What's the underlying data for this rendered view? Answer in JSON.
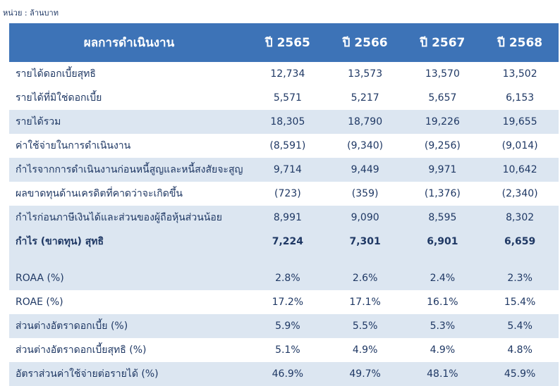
{
  "unit_label": "หน่วย : ล้านบาท",
  "header": {
    "label": "ผลการดำเนินงาน",
    "years": [
      "ปี 2565",
      "ปี 2566",
      "ปี 2567",
      "ปี 2568"
    ]
  },
  "rows": [
    {
      "label": "รายได้ดอกเบี้ยสุทธิ",
      "values": [
        "12,734",
        "13,573",
        "13,570",
        "13,502"
      ]
    },
    {
      "label": "รายได้ที่มิใช่ดอกเบี้ย",
      "values": [
        "5,571",
        "5,217",
        "5,657",
        "6,153"
      ]
    },
    {
      "label": "รายได้รวม",
      "values": [
        "18,305",
        "18,790",
        "19,226",
        "19,655"
      ]
    },
    {
      "label": "ค่าใช้จ่ายในการดำเนินงาน",
      "values": [
        "(8,591)",
        "(9,340)",
        "(9,256)",
        "(9,014)"
      ]
    },
    {
      "label": "กำไรจากการดำเนินงานก่อนหนี้สูญและหนี้สงสัยจะสูญ",
      "values": [
        "9,714",
        "9,449",
        "9,971",
        "10,642"
      ]
    },
    {
      "label": "ผลขาดทุนด้านเครดิตที่คาดว่าจะเกิดขึ้น",
      "values": [
        "(723)",
        "(359)",
        "(1,376)",
        "(2,340)"
      ]
    },
    {
      "label": "กำไรก่อนภาษีเงินได้และส่วนของผู้ถือหุ้นส่วนน้อย",
      "values": [
        "8,991",
        "9,090",
        "8,595",
        "8,302"
      ]
    },
    {
      "label": "กำไร (ขาดทุน) สุทธิ",
      "values": [
        "7,224",
        "7,301",
        "6,901",
        "6,659"
      ]
    },
    {
      "label": "ROAA (%)",
      "values": [
        "2.8%",
        "2.6%",
        "2.4%",
        "2.3%"
      ]
    },
    {
      "label": "ROAE (%)",
      "values": [
        "17.2%",
        "17.1%",
        "16.1%",
        "15.4%"
      ]
    },
    {
      "label": "ส่วนต่างอัตราดอกเบี้ย (%)",
      "values": [
        "5.9%",
        "5.5%",
        "5.3%",
        "5.4%"
      ]
    },
    {
      "label": "ส่วนต่างอัตราดอกเบี้ยสุทธิ (%)",
      "values": [
        "5.1%",
        "4.9%",
        "4.9%",
        "4.8%"
      ]
    },
    {
      "label": "อัตราส่วนค่าใช้จ่ายต่อรายได้ (%)",
      "values": [
        "46.9%",
        "49.7%",
        "48.1%",
        "45.9%"
      ]
    }
  ],
  "colors": {
    "header_bg": "#3d73b7",
    "band_bg": "#dce6f1",
    "text": "#1f3864"
  }
}
